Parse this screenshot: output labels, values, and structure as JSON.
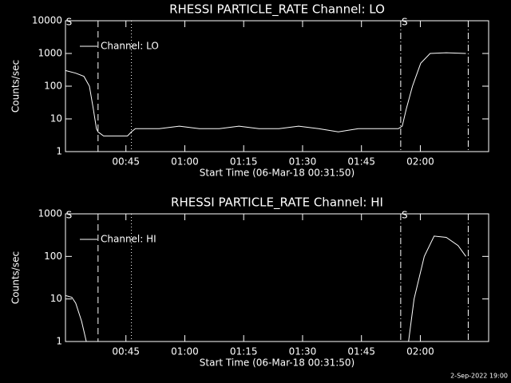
{
  "chart_data": [
    {
      "type": "line",
      "title": "RHESSI PARTICLE_RATE Channel: LO",
      "xlabel": "Start Time (06-Mar-18 00:31:50)",
      "ylabel": "Counts/sec",
      "ylog": true,
      "ylim": [
        1,
        10000
      ],
      "yticks": [
        10000,
        1000,
        100,
        10,
        1
      ],
      "xlim": [
        29.6,
        137.4
      ],
      "xticks": [
        {
          "value": 45,
          "label": "00:45"
        },
        {
          "value": 60,
          "label": "01:00"
        },
        {
          "value": 75,
          "label": "01:15"
        },
        {
          "value": 90,
          "label": "01:30"
        },
        {
          "value": 105,
          "label": "01:45"
        },
        {
          "value": 120,
          "label": "02:00"
        }
      ],
      "x": [
        29.6,
        32.2,
        34.3,
        35.7,
        36.7,
        37.5,
        37.9,
        39.3,
        41.4,
        43.4,
        45.4,
        46.4,
        47.4,
        53.5,
        58.6,
        63.7,
        68.8,
        73.8,
        78.9,
        84.0,
        89.0,
        94.1,
        99.1,
        104.2,
        109.3,
        114.4,
        115.4,
        116.4,
        118.0,
        120.1,
        122.5,
        126.6,
        131.6
      ],
      "series": [
        {
          "name": "Channel: LO",
          "color": "#ffffff",
          "values": [
            300,
            250,
            200,
            100,
            20,
            5,
            4,
            3,
            3,
            3,
            3,
            4,
            5,
            5,
            6,
            5,
            5,
            6,
            5,
            5,
            6,
            5,
            4,
            5,
            5,
            5,
            6,
            20,
            100,
            500,
            1000,
            1050,
            1000
          ]
        }
      ],
      "markers": [
        {
          "x": 37.9,
          "style": "dashed"
        },
        {
          "x": 46.4,
          "style": "dotted"
        },
        {
          "x": 115.0,
          "style": "dashdot"
        },
        {
          "x": 132.2,
          "style": "dashdot"
        }
      ],
      "annotations": [
        {
          "text": "S",
          "x": 30.5
        },
        {
          "text": "S",
          "x": 116.0
        }
      ]
    },
    {
      "type": "line",
      "title": "RHESSI PARTICLE_RATE Channel: HI",
      "xlabel": "Start Time (06-Mar-18 00:31:50)",
      "ylabel": "Counts/sec",
      "ylog": true,
      "ylim": [
        1,
        1000
      ],
      "yticks": [
        1000,
        100,
        10,
        1
      ],
      "xlim": [
        29.6,
        137.4
      ],
      "xticks": [
        {
          "value": 45,
          "label": "00:45"
        },
        {
          "value": 60,
          "label": "01:00"
        },
        {
          "value": 75,
          "label": "01:15"
        },
        {
          "value": 90,
          "label": "01:30"
        },
        {
          "value": 105,
          "label": "01:45"
        },
        {
          "value": 120,
          "label": "02:00"
        }
      ],
      "x": [
        29.6,
        31.2,
        32.2,
        33.7,
        34.9,
        null,
        117.0,
        118.4,
        121.0,
        123.5,
        126.6,
        129.6,
        131.6
      ],
      "series": [
        {
          "name": "Channel: HI",
          "color": "#ffffff",
          "values": [
            12,
            11,
            8,
            3,
            1,
            null,
            1,
            10,
            100,
            300,
            280,
            180,
            100
          ]
        }
      ],
      "markers": [
        {
          "x": 37.9,
          "style": "dashed"
        },
        {
          "x": 46.4,
          "style": "dotted"
        },
        {
          "x": 115.0,
          "style": "dashdot"
        },
        {
          "x": 132.2,
          "style": "dashdot"
        }
      ],
      "annotations": [
        {
          "text": "S",
          "x": 30.5
        },
        {
          "text": "S",
          "x": 116.0
        }
      ]
    }
  ],
  "footer": "2-Sep-2022 19:00"
}
